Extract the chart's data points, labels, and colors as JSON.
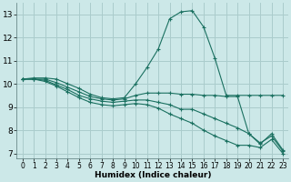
{
  "xlabel": "Humidex (Indice chaleur)",
  "bg_color": "#cce8e8",
  "grid_color": "#aacccc",
  "line_color": "#1a7060",
  "xlim": [
    -0.5,
    23.5
  ],
  "ylim": [
    6.8,
    13.5
  ],
  "yticks": [
    7,
    8,
    9,
    10,
    11,
    12,
    13
  ],
  "xticks": [
    0,
    1,
    2,
    3,
    4,
    5,
    6,
    7,
    8,
    9,
    10,
    11,
    12,
    13,
    14,
    15,
    16,
    17,
    18,
    19,
    20,
    21,
    22,
    23
  ],
  "series": [
    [
      10.2,
      10.25,
      10.25,
      10.2,
      10.0,
      9.8,
      9.55,
      9.4,
      9.35,
      9.4,
      10.0,
      10.7,
      11.5,
      12.8,
      13.1,
      13.15,
      12.45,
      11.1,
      9.5,
      9.5,
      9.5,
      9.5,
      9.5,
      9.5
    ],
    [
      10.2,
      10.2,
      10.2,
      10.05,
      9.85,
      9.65,
      9.45,
      9.35,
      9.3,
      9.35,
      9.5,
      9.6,
      9.6,
      9.6,
      9.55,
      9.55,
      9.5,
      9.5,
      9.45,
      9.45,
      7.85,
      7.4,
      7.85,
      7.15
    ],
    [
      10.2,
      10.2,
      10.15,
      9.95,
      9.75,
      9.5,
      9.35,
      9.25,
      9.2,
      9.25,
      9.3,
      9.3,
      9.2,
      9.1,
      8.9,
      8.9,
      8.7,
      8.5,
      8.3,
      8.1,
      7.85,
      7.45,
      7.75,
      7.1
    ],
    [
      10.2,
      10.2,
      10.1,
      9.9,
      9.65,
      9.4,
      9.2,
      9.1,
      9.05,
      9.1,
      9.15,
      9.1,
      8.95,
      8.7,
      8.5,
      8.3,
      8.0,
      7.75,
      7.55,
      7.35,
      7.35,
      7.25,
      7.6,
      7.0
    ]
  ]
}
